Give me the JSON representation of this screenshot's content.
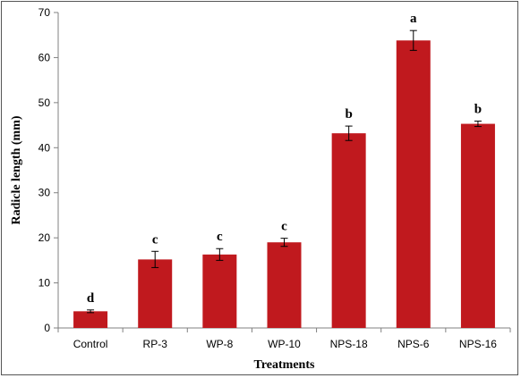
{
  "chart_data": {
    "type": "bar",
    "categories": [
      "Control",
      "RP-3",
      "WP-8",
      "WP-10",
      "NPS-18",
      "NPS-6",
      "NPS-16"
    ],
    "series": [
      {
        "values": [
          3.7,
          15.2,
          16.3,
          19.0,
          43.2,
          63.8,
          45.3
        ],
        "errors": [
          0.3,
          1.8,
          1.3,
          0.9,
          1.6,
          2.2,
          0.6
        ],
        "significance": [
          "d",
          "c",
          "c",
          "c",
          "b",
          "a",
          "b"
        ]
      }
    ],
    "xlabel": "Treatments",
    "ylabel": "Radicle length (mm)",
    "ylim": [
      0,
      70
    ],
    "yticks": [
      0,
      10,
      20,
      30,
      40,
      50,
      60,
      70
    ],
    "grid": false,
    "legend": "none",
    "bar_color": "#c0191e"
  }
}
